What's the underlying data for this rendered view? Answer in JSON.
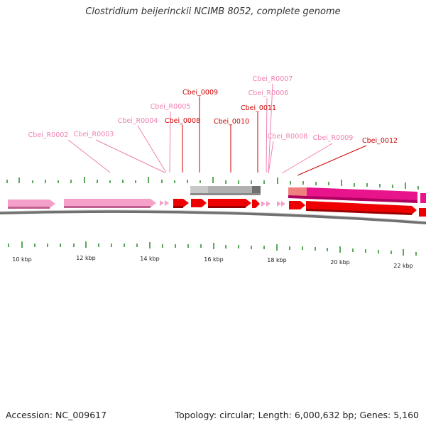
{
  "title": "Clostridium beijerinckii NCIMB 8052, complete genome",
  "footer": {
    "accession": "Accession: NC_009617",
    "stats": "Topology: circular; Length: 6,000,632 bp; Genes: 5,160"
  },
  "colors": {
    "trna": "#f4a0c8",
    "cds": "#ee0000",
    "gene_label_dark": "#cc0000",
    "gene_label_light": "#f080b0",
    "gc_tick": "#228b22",
    "backbone": "#808080",
    "gray_feature": "#b4b4b4",
    "magenta_feature": "#e8148c"
  },
  "scale": {
    "ticks": [
      {
        "label": "10 kbp"
      },
      {
        "label": "12 kbp"
      },
      {
        "label": "14 kbp"
      },
      {
        "label": "16 kbp"
      },
      {
        "label": "18 kbp"
      },
      {
        "label": "20 kbp"
      },
      {
        "label": "22 kbp"
      }
    ]
  },
  "genes": [
    {
      "label": "Cbei_R0002",
      "kind": "trna"
    },
    {
      "label": "Cbei_R0003",
      "kind": "trna"
    },
    {
      "label": "Cbei_R0004",
      "kind": "trna"
    },
    {
      "label": "Cbei_R0005",
      "kind": "trna"
    },
    {
      "label": "Cbei_0008",
      "kind": "cds"
    },
    {
      "label": "Cbei_0009",
      "kind": "cds"
    },
    {
      "label": "Cbei_0010",
      "kind": "cds"
    },
    {
      "label": "Cbei_0011",
      "kind": "cds"
    },
    {
      "label": "Cbei_R0006",
      "kind": "trna"
    },
    {
      "label": "Cbei_R0007",
      "kind": "trna"
    },
    {
      "label": "Cbei_R0008",
      "kind": "trna"
    },
    {
      "label": "Cbei_R0009",
      "kind": "trna"
    },
    {
      "label": "Cbei_0012",
      "kind": "cds"
    }
  ]
}
